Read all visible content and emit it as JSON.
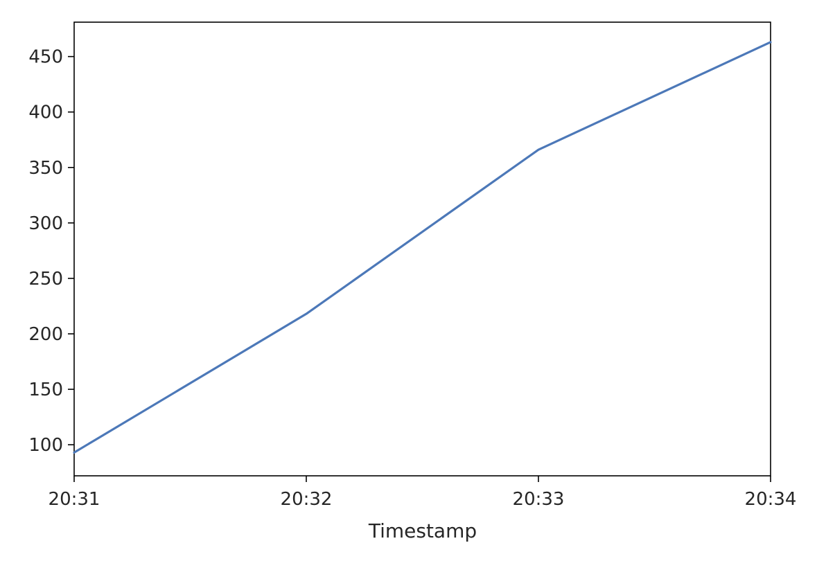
{
  "chart_data": {
    "type": "line",
    "title": "",
    "xlabel": "Timestamp",
    "ylabel": "",
    "x_ticks": [
      "20:31",
      "20:32",
      "20:33",
      "20:34"
    ],
    "x": [
      "20:31",
      "20:32",
      "20:33",
      "20:34"
    ],
    "xlim": [
      "20:31",
      "20:34"
    ],
    "ylim": [
      72,
      481
    ],
    "y_ticks": [
      100,
      150,
      200,
      250,
      300,
      350,
      400,
      450
    ],
    "grid": false,
    "legend": "none",
    "series": [
      {
        "values": [
          93,
          218,
          366,
          463
        ],
        "color": "#4c78b8"
      }
    ]
  }
}
